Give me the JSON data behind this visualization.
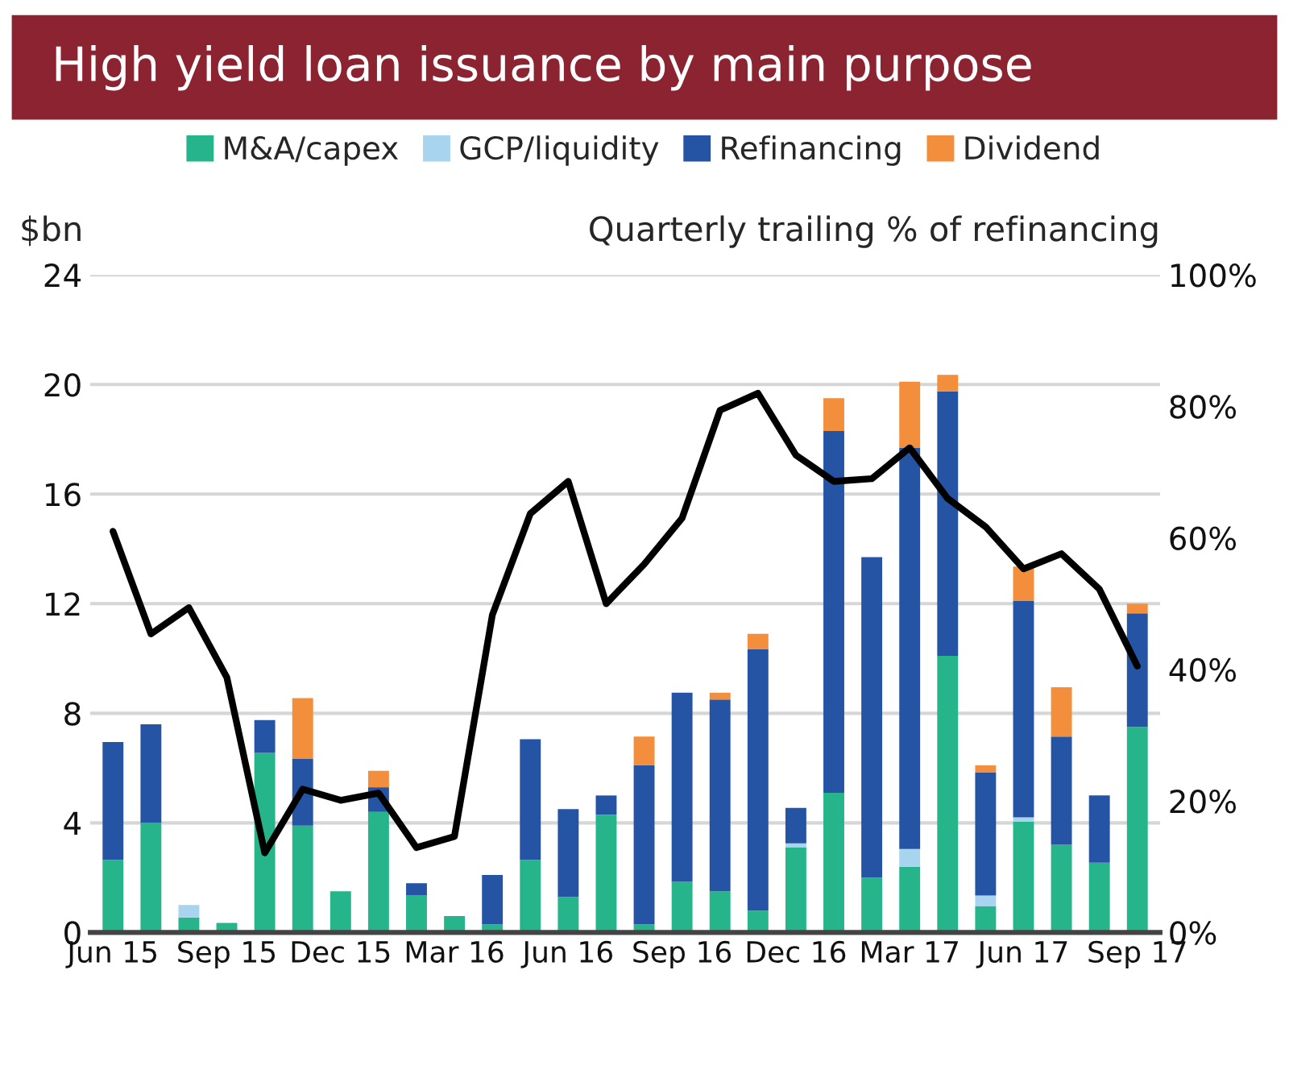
{
  "chart_data": {
    "type": "bar",
    "title": "High yield loan issuance by main purpose",
    "ylabel": "$bn",
    "y2label": "Quarterly trailing % of refinancing",
    "stacked": true,
    "legend": "top",
    "grid": "y",
    "categories": [
      "Jun 15",
      null,
      null,
      "Sep 15",
      null,
      null,
      "Dec 15",
      null,
      null,
      "Mar 16",
      null,
      null,
      "Jun 16",
      null,
      null,
      "Sep 16",
      null,
      null,
      "Dec 16",
      null,
      null,
      "Mar 17",
      null,
      null,
      "Jun 17",
      null,
      null,
      "Sep 17"
    ],
    "series": [
      {
        "name": "M&A/capex",
        "color": "#26b58a",
        "values": [
          2.65,
          4.0,
          0.55,
          0.35,
          6.55,
          3.9,
          1.5,
          4.4,
          1.35,
          0.6,
          0.3,
          2.65,
          1.3,
          4.3,
          0.3,
          1.85,
          1.5,
          0.8,
          3.1,
          5.1,
          2.0,
          2.4,
          10.1,
          0.95,
          4.05,
          3.2,
          2.55,
          7.5
        ]
      },
      {
        "name": "GCP/liquidity",
        "color": "#a9d4ef",
        "values": [
          0,
          0,
          0.45,
          0,
          0,
          0,
          0,
          0,
          0,
          0,
          0,
          0,
          0,
          0,
          0,
          0,
          0,
          0,
          0.15,
          0,
          0,
          0.65,
          0,
          0.4,
          0.15,
          0,
          0,
          0
        ]
      },
      {
        "name": "Refinancing",
        "color": "#2654a5",
        "values": [
          4.3,
          3.6,
          0,
          0,
          1.2,
          2.45,
          0,
          0.9,
          0.45,
          0,
          1.8,
          4.4,
          3.2,
          0.7,
          5.8,
          6.9,
          7.0,
          9.55,
          1.3,
          13.2,
          11.7,
          14.65,
          9.65,
          4.5,
          7.9,
          3.95,
          2.45,
          4.15
        ]
      },
      {
        "name": "Dividend",
        "color": "#f28e3c",
        "values": [
          0,
          0,
          0,
          0,
          0,
          2.2,
          0,
          0.6,
          0,
          0,
          0,
          0,
          0,
          0,
          1.05,
          0,
          0.25,
          0.55,
          0,
          1.2,
          0,
          2.4,
          0.6,
          0.25,
          1.25,
          1.8,
          0,
          0.35
        ]
      },
      {
        "type": "line",
        "axis": "y2",
        "color": "#000000",
        "values": [
          61,
          45.4,
          49.4,
          38.8,
          12.1,
          21.8,
          20.1,
          21.2,
          12.9,
          14.6,
          48.3,
          63.7,
          68.6,
          50,
          56,
          63,
          79.4,
          82,
          72.6,
          68.6,
          69,
          73.7,
          66,
          61.7,
          55.3,
          57.6,
          52.2,
          40.5
        ]
      }
    ],
    "ylim": [
      0,
      24
    ],
    "yticks": [
      0,
      4,
      8,
      12,
      16,
      20,
      24
    ],
    "y2lim": [
      0,
      100
    ],
    "y2ticks": [
      {
        "value": 0,
        "label": "0%"
      },
      {
        "value": 20,
        "label": "20%"
      },
      {
        "value": 40,
        "label": "40%"
      },
      {
        "value": 60,
        "label": "60%"
      },
      {
        "value": 80,
        "label": "80%"
      },
      {
        "value": 100,
        "label": "100%"
      }
    ]
  }
}
